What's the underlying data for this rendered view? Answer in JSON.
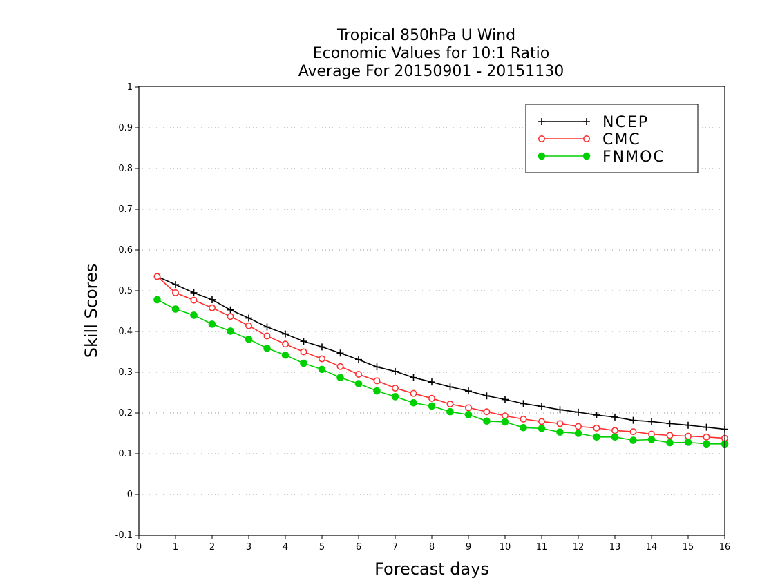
{
  "chart_data": {
    "type": "line",
    "title": [
      "Tropical 850hPa U Wind",
      "Economic Values for 10:1 Ratio",
      "Average For 20150901 - 20151130"
    ],
    "xlabel": "Forecast days",
    "ylabel": "Skill Scores",
    "xlim": [
      0,
      16
    ],
    "ylim": [
      -0.1,
      1
    ],
    "xticks": [
      0,
      1,
      2,
      3,
      4,
      5,
      6,
      7,
      8,
      9,
      10,
      11,
      12,
      13,
      14,
      15,
      16
    ],
    "yticks": [
      -0.1,
      0,
      0.1,
      0.2,
      0.3,
      0.4,
      0.5,
      0.6,
      0.7,
      0.8,
      0.9,
      1
    ],
    "grid": "horizontal dotted",
    "legend_position": "top-right",
    "x": [
      0.5,
      1,
      1.5,
      2,
      2.5,
      3,
      3.5,
      4,
      4.5,
      5,
      5.5,
      6,
      6.5,
      7,
      7.5,
      8,
      8.5,
      9,
      9.5,
      10,
      10.5,
      11,
      11.5,
      12,
      12.5,
      13,
      13.5,
      14,
      14.5,
      15,
      15.5,
      16
    ],
    "series": [
      {
        "name": "NCEP",
        "color": "#000000",
        "marker": "plus",
        "values": [
          0.535,
          0.515,
          0.495,
          0.478,
          0.453,
          0.433,
          0.411,
          0.394,
          0.376,
          0.362,
          0.347,
          0.331,
          0.313,
          0.302,
          0.287,
          0.276,
          0.264,
          0.254,
          0.242,
          0.233,
          0.223,
          0.216,
          0.208,
          0.202,
          0.195,
          0.19,
          0.182,
          0.179,
          0.174,
          0.17,
          0.165,
          0.16
        ]
      },
      {
        "name": "CMC",
        "color": "#ff3030",
        "marker": "open-circle",
        "values": [
          0.535,
          0.495,
          0.477,
          0.458,
          0.437,
          0.414,
          0.389,
          0.369,
          0.35,
          0.333,
          0.314,
          0.295,
          0.279,
          0.261,
          0.248,
          0.236,
          0.222,
          0.213,
          0.203,
          0.193,
          0.185,
          0.179,
          0.174,
          0.167,
          0.163,
          0.157,
          0.154,
          0.148,
          0.145,
          0.143,
          0.141,
          0.138
        ]
      },
      {
        "name": "FNMOC",
        "color": "#00d000",
        "marker": "filled-circle",
        "values": [
          0.478,
          0.455,
          0.44,
          0.418,
          0.401,
          0.381,
          0.359,
          0.342,
          0.322,
          0.307,
          0.287,
          0.272,
          0.254,
          0.24,
          0.225,
          0.217,
          0.203,
          0.196,
          0.18,
          0.178,
          0.164,
          0.162,
          0.153,
          0.15,
          0.141,
          0.141,
          0.133,
          0.135,
          0.127,
          0.128,
          0.124,
          0.124
        ]
      }
    ]
  }
}
